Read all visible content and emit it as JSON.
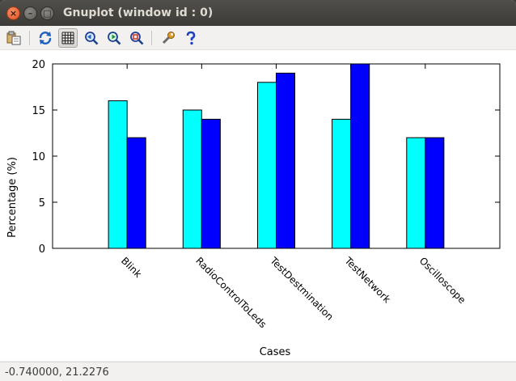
{
  "window": {
    "title": "Gnuplot (window id : 0)",
    "close_glyph": "×",
    "min_glyph": "–",
    "max_glyph": "□"
  },
  "toolbar": {
    "buttons": [
      {
        "name": "copy-to-clipboard-icon",
        "active": false
      },
      {
        "name": "replot-icon",
        "active": false
      },
      {
        "name": "grid-icon",
        "active": true
      },
      {
        "name": "zoom-previous-icon",
        "active": false
      },
      {
        "name": "zoom-next-icon",
        "active": false
      },
      {
        "name": "zoom-autoscale-icon",
        "active": false
      },
      {
        "name": "preferences-icon",
        "active": false
      },
      {
        "name": "help-icon",
        "active": false
      }
    ]
  },
  "chart_data": {
    "type": "bar",
    "categories": [
      "Blink",
      "RadioControlToLeds",
      "TestDestmination",
      "TestNetwork",
      "Oscilloscope"
    ],
    "series": [
      {
        "values": [
          16,
          15,
          18,
          14,
          12
        ],
        "color": "#00ffff"
      },
      {
        "values": [
          12,
          14,
          19,
          20,
          12
        ],
        "color": "#0000ff"
      }
    ],
    "title": "",
    "xlabel": "Cases",
    "ylabel": "Percentage (%)",
    "ylim": [
      0,
      20
    ],
    "yticks": [
      0,
      5,
      10,
      15,
      20
    ],
    "xlim": [
      -1,
      5
    ],
    "grid": false,
    "legend": "none",
    "tick_label_rotation": 45
  },
  "status": {
    "text": "-0.740000,  21.2276"
  }
}
